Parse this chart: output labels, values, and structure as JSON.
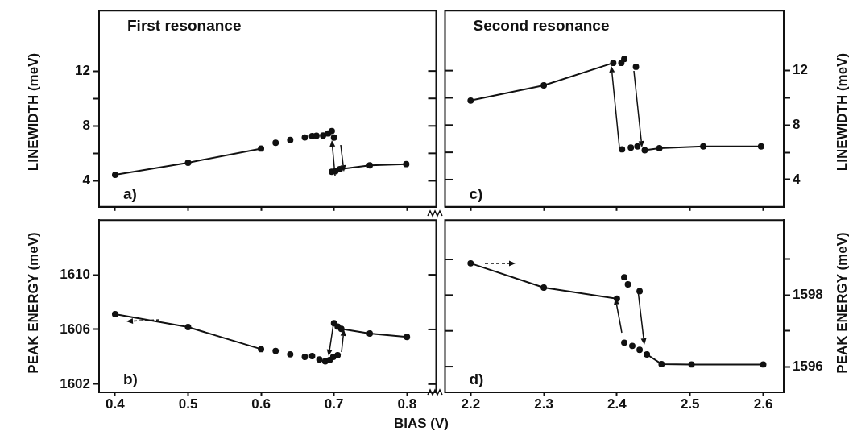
{
  "chart_data": [
    {
      "type": "line",
      "title": "First resonance",
      "ylabel": "LINEWIDTH (meV)",
      "marker": "circle",
      "tick_labels": "y",
      "annotations": [
        "a)"
      ],
      "xlim": [
        0.378,
        0.84
      ],
      "xticks": [
        0.4,
        0.5,
        0.6,
        0.7,
        0.8
      ],
      "ylim": [
        2.1,
        16.4
      ],
      "yticks": [
        4,
        {
          "value": 6,
          "label": null
        },
        8,
        {
          "value": 10,
          "label": null
        },
        12
      ],
      "series": [
        {
          "type": "line",
          "color": "#111111",
          "x": [
            0.4,
            0.5,
            0.6
          ],
          "values": [
            4.43,
            5.32,
            6.35
          ]
        },
        {
          "type": "scatter",
          "color": "#111111",
          "x": [
            0.62,
            0.64,
            0.66,
            0.67,
            0.676,
            0.685,
            0.692,
            0.697,
            0.7
          ],
          "values": [
            6.77,
            6.98,
            7.16,
            7.26,
            7.28,
            7.3,
            7.45,
            7.63,
            7.15
          ]
        },
        {
          "type": "scatter",
          "color": "#111111",
          "x": [
            0.697,
            0.702
          ],
          "values": [
            4.66,
            4.7
          ]
        },
        {
          "type": "line",
          "color": "#111111",
          "x": [
            0.708,
            0.749,
            0.799
          ],
          "values": [
            4.85,
            5.13,
            5.22
          ]
        }
      ]
    },
    {
      "type": "line",
      "ylabel": "PEAK ENERGY (meV)",
      "marker": "circle",
      "annotations": [
        "b)"
      ],
      "xlim": [
        0.378,
        0.84
      ],
      "xticks": [
        0.4,
        0.5,
        0.6,
        0.7,
        0.8
      ],
      "ylim": [
        1601.4,
        1614
      ],
      "yticks": [
        1602,
        1606,
        1610
      ],
      "series": [
        {
          "type": "line",
          "color": "#111111",
          "x": [
            0.4,
            0.5,
            0.6
          ],
          "values": [
            1607.12,
            1606.17,
            1604.56
          ]
        },
        {
          "type": "scatter",
          "color": "#111111",
          "x": [
            0.62,
            0.64,
            0.66,
            0.67,
            0.68,
            0.688,
            0.694,
            0.699,
            0.705
          ],
          "values": [
            1604.43,
            1604.18,
            1603.99,
            1604.05,
            1603.8,
            1603.67,
            1603.76,
            1603.99,
            1604.12
          ]
        },
        {
          "type": "scatter",
          "color": "#111111",
          "x": [
            0.7,
            0.705
          ],
          "values": [
            1606.45,
            1606.21
          ]
        },
        {
          "type": "line",
          "color": "#111111",
          "x": [
            0.71,
            0.749,
            0.8
          ],
          "values": [
            1606.04,
            1605.7,
            1605.45
          ]
        }
      ]
    },
    {
      "type": "line",
      "title": "Second resonance",
      "y2label": "LINEWIDTH (meV)",
      "marker": "circle",
      "tick_labels": "y",
      "annotations": [
        "c)"
      ],
      "xlim": [
        2.165,
        2.628
      ],
      "xticks": [
        2.2,
        2.3,
        2.4,
        2.5,
        2.6
      ],
      "y2lim": [
        2,
        16.4
      ],
      "y2ticks": [
        4,
        {
          "value": 6,
          "label": null
        },
        8,
        {
          "value": 10,
          "label": null
        },
        12
      ],
      "series": [
        {
          "type": "line",
          "axis": "y2",
          "color": "#111111",
          "x": [
            2.2,
            2.3,
            2.395
          ],
          "values": [
            9.8,
            10.91,
            12.56
          ]
        },
        {
          "type": "scatter",
          "axis": "y2",
          "color": "#111111",
          "x": [
            2.406,
            2.41,
            2.426
          ],
          "values": [
            12.56,
            12.85,
            12.28
          ]
        },
        {
          "type": "scatter",
          "axis": "y2",
          "color": "#111111",
          "x": [
            2.407,
            2.419,
            2.428
          ],
          "values": [
            6.22,
            6.35,
            6.44
          ]
        },
        {
          "type": "line",
          "axis": "y2",
          "color": "#111111",
          "x": [
            2.438,
            2.458,
            2.518,
            2.597
          ],
          "values": [
            6.16,
            6.31,
            6.44,
            6.44
          ]
        }
      ]
    },
    {
      "type": "line",
      "xlabel": "BIAS (V)",
      "y2label": "PEAK ENERGY (meV)",
      "marker": "circle",
      "annotations": [
        "d)"
      ],
      "xlim": [
        2.165,
        2.628
      ],
      "xticks": [
        2.2,
        2.3,
        2.4,
        2.5,
        2.6
      ],
      "y2lim": [
        1595.28,
        1600.1
      ],
      "y2ticks": [
        1596,
        {
          "value": 1597,
          "label": null
        },
        1598,
        {
          "value": 1599,
          "label": null
        }
      ],
      "series": [
        {
          "type": "line",
          "axis": "y2",
          "color": "#111111",
          "x": [
            2.2,
            2.3,
            2.4
          ],
          "values": [
            1598.89,
            1598.21,
            1597.9
          ]
        },
        {
          "type": "scatter",
          "axis": "y2",
          "color": "#111111",
          "x": [
            2.41,
            2.415,
            2.431
          ],
          "values": [
            1598.5,
            1598.3,
            1598.11
          ]
        },
        {
          "type": "scatter",
          "axis": "y2",
          "color": "#111111",
          "x": [
            2.41,
            2.421,
            2.431
          ],
          "values": [
            1596.67,
            1596.58,
            1596.47
          ]
        },
        {
          "type": "line",
          "axis": "y2",
          "color": "#111111",
          "x": [
            2.441,
            2.461,
            2.502,
            2.6
          ],
          "values": [
            1596.34,
            1596.07,
            1596.06,
            1596.06
          ]
        }
      ]
    }
  ]
}
